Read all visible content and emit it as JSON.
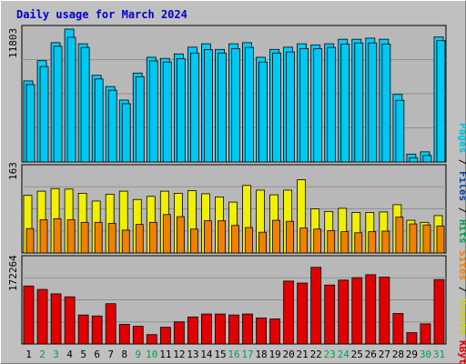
{
  "title": "Daily usage for March 2024",
  "colors": {
    "background": "#c0c0c0",
    "plot_bg": "#b8b8b8",
    "title": "#0000cc",
    "hits": "#00a8c8",
    "hits_fill": "#00ccff",
    "files": "#0040a0",
    "files_fill": "#00c8f0",
    "pages": "#00c0d8",
    "visits": "#f0f000",
    "sites": "#f08000",
    "kbytes": "#e00000",
    "weekend_day": "#00a050",
    "weekday_day": "#000000"
  },
  "panels": {
    "top": {
      "max_label": "11803",
      "legend": [
        "Pages",
        "Files",
        "Hits"
      ]
    },
    "mid": {
      "max_label": "163",
      "legend": [
        "Sites",
        "Visits"
      ]
    },
    "bottom": {
      "max_label": "172264",
      "legend": [
        "KBytes"
      ]
    }
  },
  "chart_data": {
    "type": "bar",
    "title": "Daily usage for March 2024",
    "categories": [
      "1",
      "2",
      "3",
      "4",
      "5",
      "6",
      "7",
      "8",
      "9",
      "10",
      "11",
      "12",
      "13",
      "14",
      "15",
      "16",
      "17",
      "18",
      "19",
      "20",
      "21",
      "22",
      "23",
      "24",
      "25",
      "26",
      "27",
      "28",
      "29",
      "30",
      "31"
    ],
    "weekend_days": [
      2,
      3,
      9,
      10,
      16,
      17,
      23,
      24,
      30,
      31
    ],
    "series": [
      {
        "name": "Hits",
        "panel": "top",
        "values": [
          7200,
          9000,
          10600,
          11803,
          10500,
          7700,
          6700,
          5500,
          7900,
          9300,
          9200,
          9600,
          10200,
          10500,
          10000,
          10500,
          10600,
          9300,
          10000,
          10200,
          10500,
          10400,
          10500,
          10900,
          10900,
          11000,
          10900,
          6000,
          700,
          900,
          11100
        ]
      },
      {
        "name": "Files",
        "panel": "top",
        "values": [
          7200,
          8800,
          10600,
          11400,
          10500,
          7700,
          6700,
          5500,
          7900,
          9300,
          9200,
          9500,
          10000,
          10300,
          10000,
          10400,
          10500,
          9200,
          10000,
          10100,
          10400,
          10400,
          10500,
          10800,
          10900,
          10900,
          10800,
          5800,
          700,
          900,
          11100
        ]
      },
      {
        "name": "Visits",
        "panel": "mid",
        "values": [
          111,
          119,
          124,
          123,
          115,
          100,
          113,
          119,
          103,
          109,
          119,
          115,
          120,
          114,
          108,
          98,
          130,
          121,
          112,
          121,
          141,
          85,
          80,
          86,
          78,
          78,
          79,
          93,
          63,
          59,
          72
        ]
      },
      {
        "name": "Sites",
        "panel": "mid",
        "values": [
          47,
          64,
          66,
          64,
          59,
          59,
          57,
          44,
          55,
          59,
          74,
          70,
          46,
          62,
          62,
          53,
          49,
          40,
          63,
          61,
          48,
          46,
          43,
          41,
          39,
          41,
          42,
          69,
          56,
          54,
          52
        ]
      },
      {
        "name": "KBytes",
        "panel": "bottom",
        "values": [
          118000,
          111000,
          102000,
          96000,
          59000,
          57000,
          82000,
          40000,
          36000,
          19000,
          34000,
          45000,
          55000,
          61000,
          61000,
          59000,
          61000,
          53000,
          51000,
          128000,
          124000,
          156000,
          120000,
          130000,
          135000,
          141000,
          136000,
          62000,
          23000,
          41000,
          131000
        ]
      }
    ],
    "ylim_top": [
      0,
      11803
    ],
    "ylim_mid": [
      0,
      163
    ],
    "ylim_bottom": [
      0,
      172264
    ],
    "grid": true,
    "legend": "right, vertical"
  }
}
